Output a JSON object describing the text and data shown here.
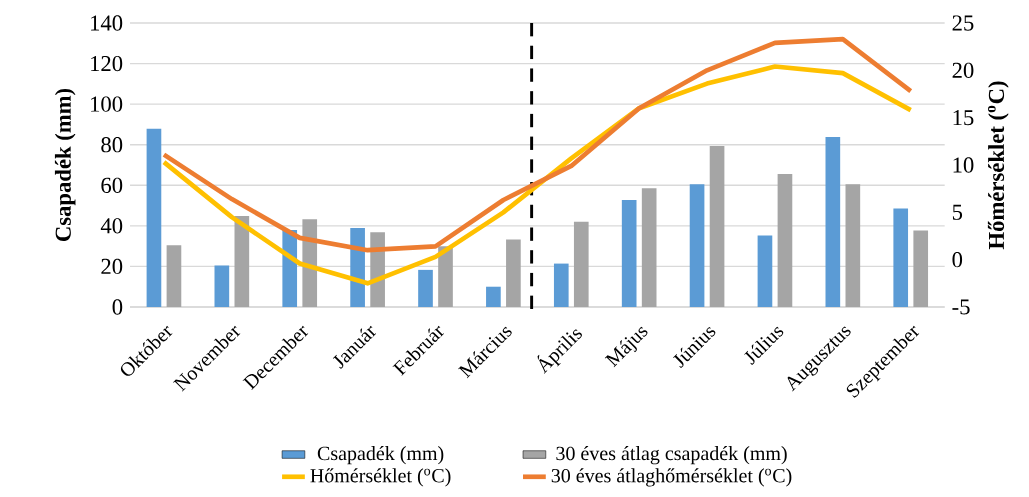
{
  "chart_data": {
    "type": "bar",
    "categories": [
      "Október",
      "November",
      "December",
      "Január",
      "Február",
      "Március",
      "Április",
      "Május",
      "Június",
      "Július",
      "Augusztus",
      "Szeptember"
    ],
    "series": [
      {
        "name": "Csapadék (mm)",
        "color": "#5b9bd5",
        "values": [
          88,
          20.5,
          38,
          39,
          18.3,
          10,
          21.4,
          52.7,
          60.5,
          35.3,
          83.8,
          48.6
        ]
      },
      {
        "name": "30 éves átlag csapadék  (mm)",
        "color": "#a5a5a5",
        "values": [
          30.5,
          44.8,
          43.2,
          36.8,
          30,
          33.3,
          42,
          58.5,
          79.4,
          65.6,
          60.5,
          37.7
        ]
      },
      {
        "name": "Hőmérséklet ($^{o}$C)",
        "type": "line",
        "axis": "y2",
        "color": "#ffc000",
        "values": [
          10.3,
          4.5,
          -0.4,
          -2.5,
          0.3,
          5.0,
          10.7,
          16,
          18.6,
          20.4,
          19.7,
          15.8
        ]
      },
      {
        "name": "30 éves átlaghőmérséklet ($^{o}$C)",
        "type": "line",
        "axis": "y2",
        "color": "#ed7d31",
        "values": [
          11.1,
          6.4,
          2.3,
          1.0,
          1.4,
          6.3,
          9.9,
          16,
          20,
          22.9,
          23.3,
          17.8
        ]
      }
    ],
    "ylabel": "Csapadék (mm)",
    "y2label": "Hőmérséklet ($^{o}$C)",
    "ylim": [
      0,
      140
    ],
    "yticks": [
      0,
      20,
      40,
      60,
      80,
      100,
      120,
      140
    ],
    "y2lim": [
      -5,
      25
    ],
    "y2ticks": [
      -5,
      0,
      5,
      10,
      15,
      20,
      25
    ],
    "grid": "y",
    "legend": "bottom",
    "line_style": "solid",
    "marker": "none"
  }
}
